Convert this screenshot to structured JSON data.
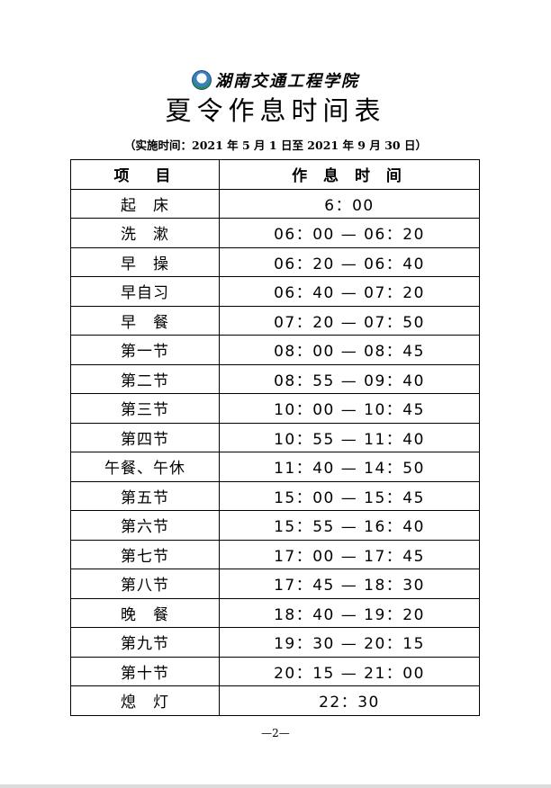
{
  "header": {
    "org_name": "湖南交通工程学院",
    "title": "夏令作息时间表",
    "subtitle": "（实施时间：2021 年 5 月 1 日至 2021 年 9 月 30 日）"
  },
  "table": {
    "columns": [
      "项　目",
      "作 息 时 间"
    ],
    "rows": [
      {
        "item": "起　床",
        "time": "6：00"
      },
      {
        "item": "洗　漱",
        "time": "06：00 — 06：20"
      },
      {
        "item": "早　操",
        "time": "06：20 — 06：40"
      },
      {
        "item": "早自习",
        "time": "06：40 — 07：20"
      },
      {
        "item": "早　餐",
        "time": "07：20 — 07：50"
      },
      {
        "item": "第一节",
        "time": "08：00 — 08：45"
      },
      {
        "item": "第二节",
        "time": "08：55 — 09：40"
      },
      {
        "item": "第三节",
        "time": "10：00 — 10：45"
      },
      {
        "item": "第四节",
        "time": "10：55 — 11：40"
      },
      {
        "item": "午餐、午休",
        "time": "11：40 — 14：50"
      },
      {
        "item": "第五节",
        "time": "15：00 — 15：45"
      },
      {
        "item": "第六节",
        "time": "15：55 — 16：40"
      },
      {
        "item": "第七节",
        "time": "17：00 — 17：45"
      },
      {
        "item": "第八节",
        "time": "17：45 — 18：30"
      },
      {
        "item": "晚　餐",
        "time": "18：40 — 19：20"
      },
      {
        "item": "第九节",
        "time": "19：30 — 20：15"
      },
      {
        "item": "第十节",
        "time": "20：15 — 21：00"
      },
      {
        "item": "熄　灯",
        "time": "22：30"
      }
    ]
  },
  "footer": {
    "page_number": "—2—"
  }
}
